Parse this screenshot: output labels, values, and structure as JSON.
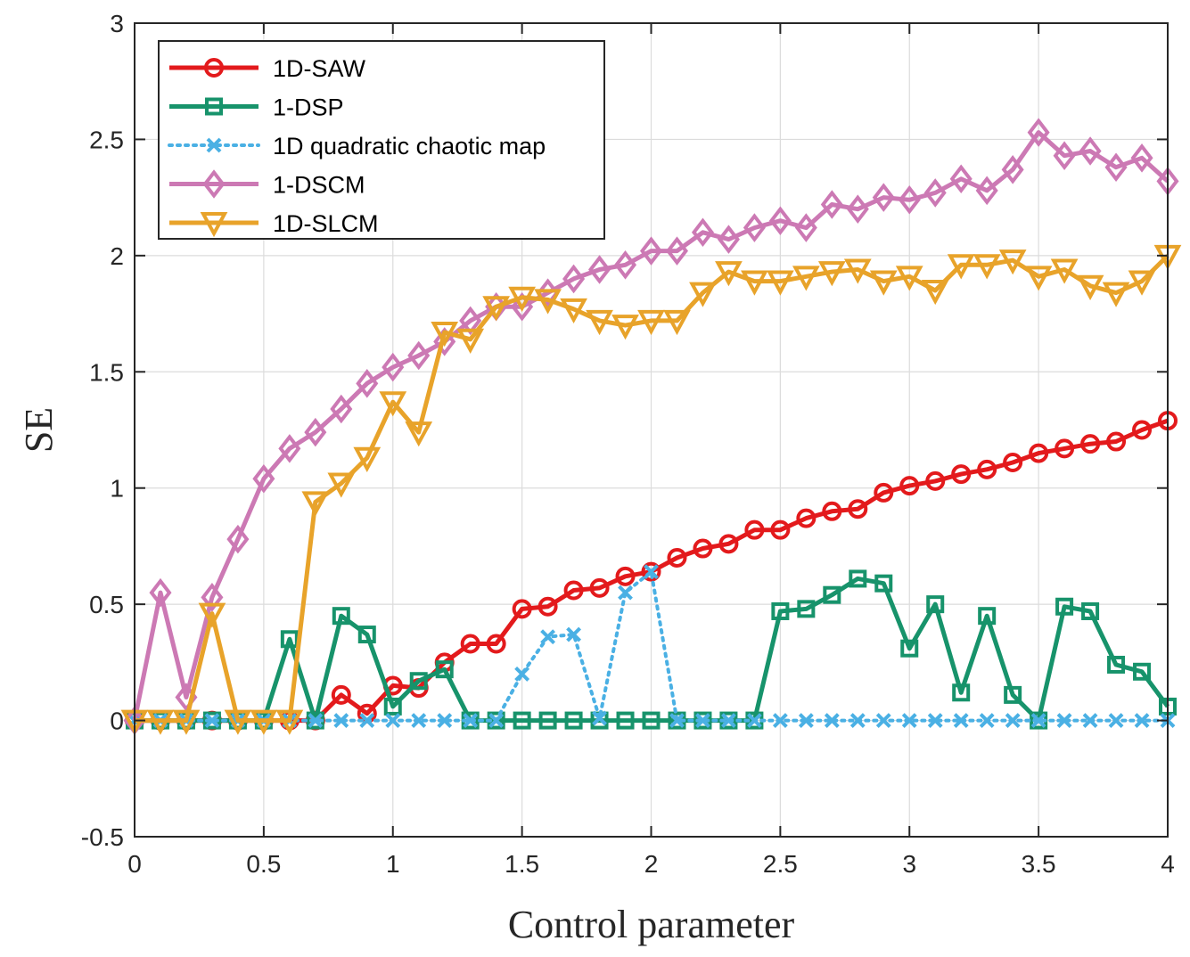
{
  "chart_data": {
    "type": "line",
    "title": "",
    "xlabel": "Control parameter",
    "ylabel": "SE",
    "xlim": [
      0,
      4
    ],
    "ylim": [
      -0.5,
      3
    ],
    "grid": true,
    "legend_position": "top-left",
    "xticks": [
      "0",
      "0.5",
      "1",
      "1.5",
      "2",
      "2.5",
      "3",
      "3.5",
      "4"
    ],
    "yticks": [
      "-0.5",
      "0",
      "0.5",
      "1",
      "1.5",
      "2",
      "2.5",
      "3"
    ],
    "x": [
      0,
      0.1,
      0.2,
      0.3,
      0.4,
      0.5,
      0.6,
      0.7,
      0.8,
      0.9,
      1,
      1.1,
      1.2,
      1.3,
      1.4,
      1.5,
      1.6,
      1.7,
      1.8,
      1.9,
      2,
      2.1,
      2.2,
      2.3,
      2.4,
      2.5,
      2.6,
      2.7,
      2.8,
      2.9,
      3,
      3.1,
      3.2,
      3.3,
      3.4,
      3.5,
      3.6,
      3.7,
      3.8,
      3.9,
      4
    ],
    "series": [
      {
        "name": "1D-SAW",
        "color": "#e31a1c",
        "marker": "circle",
        "dash": "solid",
        "values": [
          0,
          0,
          0,
          0,
          0,
          0,
          0,
          0,
          0.11,
          0.03,
          0.15,
          0.14,
          0.25,
          0.33,
          0.33,
          0.48,
          0.49,
          0.56,
          0.57,
          0.62,
          0.64,
          0.7,
          0.74,
          0.76,
          0.82,
          0.82,
          0.87,
          0.9,
          0.91,
          0.98,
          1.01,
          1.03,
          1.06,
          1.08,
          1.11,
          1.15,
          1.17,
          1.19,
          1.2,
          1.25,
          1.29
        ]
      },
      {
        "name": " 1-DSP",
        "color": "#17936b",
        "marker": "square",
        "dash": "solid",
        "values": [
          0,
          0,
          0,
          0,
          0,
          0,
          0.35,
          0,
          0.45,
          0.37,
          0.06,
          0.17,
          0.22,
          0,
          0,
          0,
          0,
          0,
          0,
          0,
          0,
          0,
          0,
          0,
          0,
          0.47,
          0.48,
          0.54,
          0.61,
          0.59,
          0.31,
          0.5,
          0.12,
          0.45,
          0.11,
          0,
          0.49,
          0.47,
          0.24,
          0.21,
          0.06
        ]
      },
      {
        "name": "1D quadratic chaotic map",
        "color": "#4ab0e4",
        "marker": "x",
        "dash": "dotted",
        "values": [
          0,
          0,
          0,
          0,
          0,
          0,
          0,
          0,
          0,
          0,
          0,
          0,
          0,
          0,
          0,
          0.2,
          0.36,
          0.37,
          0.01,
          0.55,
          0.64,
          0,
          0,
          0,
          0,
          0,
          0,
          0,
          0,
          0,
          0,
          0,
          0,
          0,
          0,
          0,
          0,
          0,
          0,
          0,
          0
        ]
      },
      {
        "name": "1-DSCM",
        "color": "#cc79b4",
        "marker": "diamond",
        "dash": "solid",
        "values": [
          0,
          0.55,
          0.1,
          0.53,
          0.78,
          1.04,
          1.17,
          1.24,
          1.34,
          1.45,
          1.52,
          1.57,
          1.63,
          1.72,
          1.78,
          1.78,
          1.84,
          1.9,
          1.94,
          1.96,
          2.02,
          2.02,
          2.1,
          2.07,
          2.12,
          2.15,
          2.12,
          2.22,
          2.2,
          2.25,
          2.24,
          2.27,
          2.33,
          2.28,
          2.37,
          2.53,
          2.43,
          2.45,
          2.38,
          2.42,
          2.32
        ]
      },
      {
        "name": "1D-SLCM",
        "color": "#e8a32a",
        "marker": "triangle-down",
        "dash": "solid",
        "values": [
          0,
          0,
          0,
          0.46,
          0,
          0,
          0,
          0.94,
          1.02,
          1.13,
          1.37,
          1.24,
          1.67,
          1.64,
          1.78,
          1.82,
          1.81,
          1.77,
          1.72,
          1.7,
          1.72,
          1.72,
          1.84,
          1.93,
          1.89,
          1.89,
          1.91,
          1.93,
          1.94,
          1.89,
          1.91,
          1.85,
          1.96,
          1.96,
          1.98,
          1.91,
          1.94,
          1.87,
          1.84,
          1.89,
          2.0
        ]
      }
    ]
  }
}
